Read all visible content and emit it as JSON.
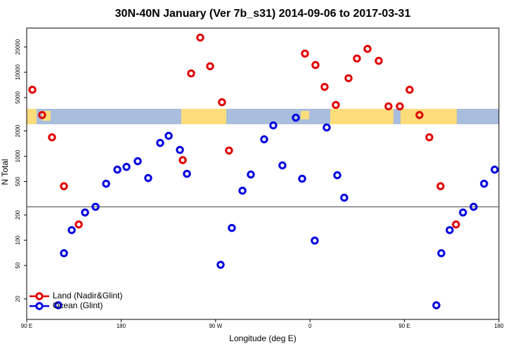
{
  "chart_data": {
    "type": "scatter",
    "title": "30N-40N January (Ver 7b_s31)   2014-09-06 to 2017-03-31",
    "x_label": "Longitude (deg E)",
    "y_label": "N Total",
    "log_y": true,
    "xlim": [
      90,
      540
    ],
    "ylim": [
      11.4,
      33600
    ],
    "xticks": [
      {
        "value": 90,
        "label": "90 E"
      },
      {
        "value": 180,
        "label": "180"
      },
      {
        "value": 270,
        "label": "90 W"
      },
      {
        "value": 360,
        "label": "0"
      },
      {
        "value": 450,
        "label": "90 E"
      },
      {
        "value": 540,
        "label": "180"
      }
    ],
    "yticks": [
      20,
      50,
      100,
      200,
      500,
      1000,
      2000,
      5000,
      10000,
      20000
    ],
    "reference_line": 250,
    "legend": "bottom-left",
    "series": [
      {
        "name": "Land (Nadir&Glint)",
        "color": "#e00000",
        "x": [
          95.4,
          104.7,
          114.1,
          125.5,
          139.6,
          238.7,
          246.7,
          255.4,
          264.8,
          276.1,
          282.8,
          355.2,
          365.2,
          373.9,
          384.6,
          396.7,
          404.7,
          414.8,
          425.5,
          434.8,
          445.6,
          454.9,
          464.3,
          473.7,
          484.4,
          499.1
        ],
        "values": [
          6200,
          3100,
          1680,
          440,
          154,
          900,
          9700,
          25900,
          11800,
          4400,
          1170,
          16700,
          12200,
          6700,
          4080,
          8500,
          14600,
          19000,
          13700,
          3930,
          3930,
          6200,
          3100,
          1680,
          440,
          154
        ]
      },
      {
        "name": "Ocean (Glint)",
        "color": "#0000e0",
        "x": [
          120.1,
          125.5,
          132.9,
          145.6,
          155.6,
          165.7,
          176.4,
          185.1,
          195.8,
          205.8,
          217.2,
          225.3,
          236.0,
          242.7,
          274.8,
          285.5,
          295.6,
          303.6,
          316.3,
          325.0,
          333.7,
          346.5,
          352.5,
          364.5,
          375.9,
          386.0,
          392.6,
          480.4,
          485.1,
          493.1,
          505.8,
          515.9,
          525.9,
          536.0
        ],
        "values": [
          16.8,
          70,
          132,
          214,
          250,
          471,
          693,
          748,
          873,
          550,
          1440,
          1750,
          1190,
          618,
          51,
          140,
          389,
          606,
          1590,
          2330,
          778,
          2880,
          540,
          99,
          2200,
          594,
          321,
          16.8,
          70,
          132,
          214,
          250,
          471,
          693
        ]
      }
    ]
  }
}
